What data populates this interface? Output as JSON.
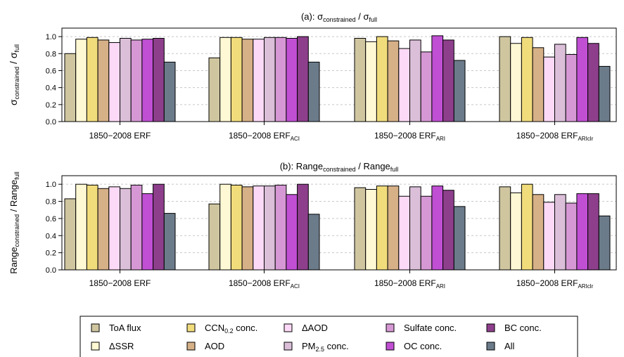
{
  "chart_data": [
    {
      "type": "bar",
      "title": {
        "prefix": "(a): ",
        "num": "σ",
        "num_sub": "constrained",
        "sep": " / ",
        "den": "σ",
        "den_sub": "full"
      },
      "ylabel": {
        "a": "σ",
        "a_sub": "constrained",
        "sep": " / ",
        "b": "σ",
        "b_sub": "full"
      },
      "ylim": [
        0,
        1.1
      ],
      "yticks": [
        "0.0",
        "0.2",
        "0.4",
        "0.6",
        "0.8",
        "1.0"
      ],
      "grid": "horizontal dashed",
      "categories": [
        {
          "label": "1850−2008 ERF",
          "sub": ""
        },
        {
          "label": "1850−2008 ERF",
          "sub": "ACI"
        },
        {
          "label": "1850−2008 ERF",
          "sub": "ARI"
        },
        {
          "label": "1850−2008 ERF",
          "sub": "ARIclr"
        }
      ],
      "values": [
        [
          0.8,
          0.97,
          0.99,
          0.96,
          0.93,
          0.98,
          0.96,
          0.97,
          0.98,
          0.7
        ],
        [
          0.75,
          0.99,
          0.99,
          0.97,
          0.97,
          0.99,
          0.99,
          0.98,
          1.0,
          0.7
        ],
        [
          0.98,
          0.94,
          1.0,
          0.95,
          0.86,
          0.96,
          0.82,
          1.01,
          0.96,
          0.72
        ],
        [
          1.0,
          0.92,
          0.99,
          0.87,
          0.76,
          0.91,
          0.79,
          0.99,
          0.92,
          0.65
        ]
      ]
    },
    {
      "type": "bar",
      "title": {
        "prefix": "(b): ",
        "num": "Range",
        "num_sub": "constrained",
        "sep": " / ",
        "den": "Range",
        "den_sub": "full"
      },
      "ylabel": {
        "a": "Range",
        "a_sub": "constrained",
        "sep": " / ",
        "b": "Range",
        "b_sub": "full"
      },
      "ylim": [
        0,
        1.1
      ],
      "yticks": [
        "0.0",
        "0.2",
        "0.4",
        "0.6",
        "0.8",
        "1.0"
      ],
      "grid": "horizontal dashed",
      "categories": [
        {
          "label": "1850−2008 ERF",
          "sub": ""
        },
        {
          "label": "1850−2008 ERF",
          "sub": "ACI"
        },
        {
          "label": "1850−2008 ERF",
          "sub": "ARI"
        },
        {
          "label": "1850−2008 ERF",
          "sub": "ARIclr"
        }
      ],
      "values": [
        [
          0.83,
          1.0,
          0.99,
          0.95,
          0.97,
          0.95,
          0.99,
          0.89,
          1.0,
          0.66
        ],
        [
          0.77,
          1.0,
          0.99,
          0.97,
          0.98,
          0.98,
          0.99,
          0.88,
          1.0,
          0.65
        ],
        [
          0.96,
          0.94,
          0.98,
          0.98,
          0.86,
          0.97,
          0.86,
          0.98,
          0.93,
          0.74
        ],
        [
          0.97,
          0.9,
          1.0,
          0.88,
          0.79,
          0.88,
          0.78,
          0.89,
          0.89,
          0.63
        ]
      ]
    }
  ],
  "series": [
    {
      "name": "ToA flux",
      "color": "#cfc6a0"
    },
    {
      "name": "ΔSSR",
      "color": "#fff8d4"
    },
    {
      "name": "CCN",
      "sub": "0.2",
      "suffix": " conc.",
      "color": "#f1dc7c"
    },
    {
      "name": "AOD",
      "color": "#d6b087"
    },
    {
      "name": "ΔAOD",
      "color": "#fcd9f6"
    },
    {
      "name": "PM",
      "sub": "2.5",
      "suffix": " conc.",
      "color": "#dbbfd9"
    },
    {
      "name": "Sulfate conc.",
      "color": "#d698d4"
    },
    {
      "name": "OC conc.",
      "color": "#c04fd4"
    },
    {
      "name": "BC conc.",
      "color": "#8e3f8c"
    },
    {
      "name": "All",
      "color": "#6b7b8a"
    }
  ]
}
